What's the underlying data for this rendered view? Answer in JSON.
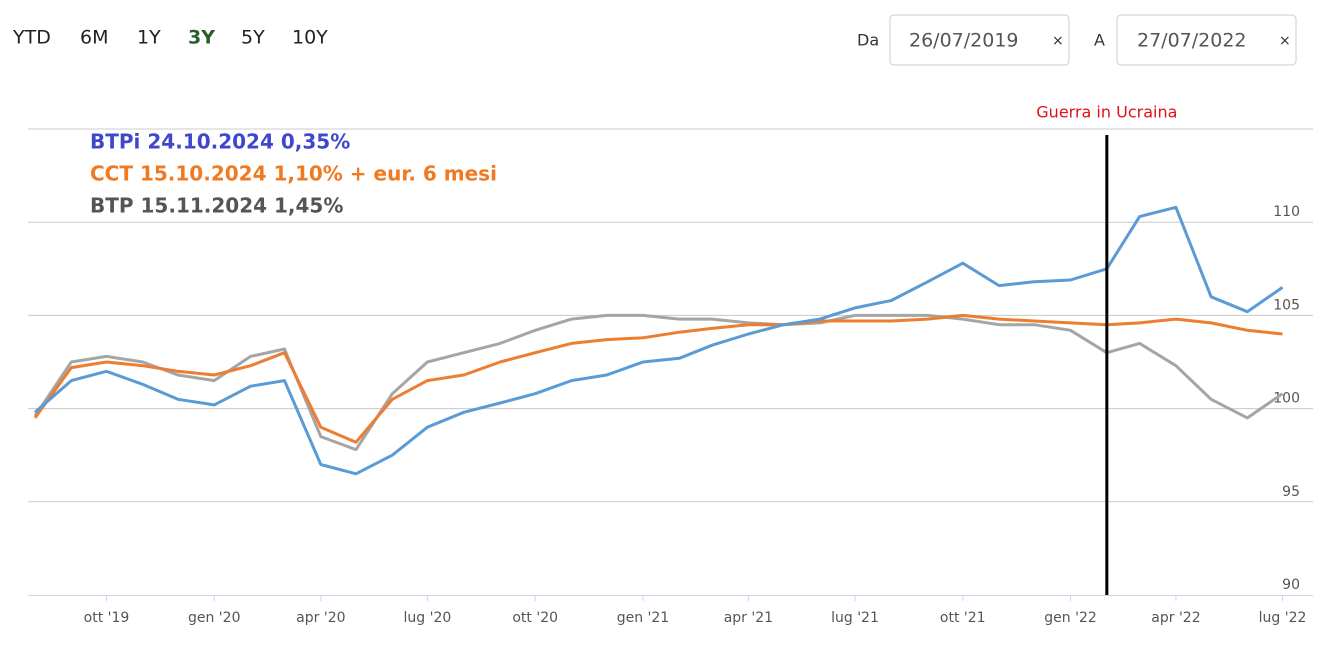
{
  "controls": {
    "ranges": [
      "YTD",
      "6M",
      "1Y",
      "3Y",
      "5Y",
      "10Y"
    ],
    "active": 3,
    "from_label": "Da",
    "to_label": "A",
    "clear": "×"
  },
  "chart_data": {
    "type": "line",
    "x": [
      "2019-08",
      "2019-09",
      "2019-10",
      "2019-11",
      "2019-12",
      "2020-01",
      "2020-02",
      "2020-03",
      "2020-04",
      "2020-05",
      "2020-06",
      "2020-07",
      "2020-08",
      "2020-09",
      "2020-10",
      "2020-11",
      "2020-12",
      "2021-01",
      "2021-02",
      "2021-03",
      "2021-04",
      "2021-05",
      "2021-06",
      "2021-07",
      "2021-08",
      "2021-09",
      "2021-10",
      "2021-11",
      "2021-12",
      "2022-01",
      "2022-02",
      "2022-03",
      "2022-04",
      "2022-05",
      "2022-06",
      "2022-07"
    ],
    "series": [
      {
        "name": "BTPi 24.10.2024 0,35%",
        "color": "#5b9bd5",
        "label_color": "#3f48cc",
        "values": [
          99.8,
          101.5,
          102.0,
          101.3,
          100.5,
          100.2,
          101.2,
          101.5,
          97.0,
          96.5,
          97.5,
          99.0,
          99.8,
          100.3,
          100.8,
          101.5,
          101.8,
          102.5,
          102.7,
          103.4,
          104.0,
          104.5,
          104.8,
          105.4,
          105.8,
          106.8,
          107.8,
          106.6,
          106.8,
          106.9,
          107.5,
          110.3,
          110.8,
          106.0,
          105.2,
          106.5
        ]
      },
      {
        "name": "CCT 15.10.2024 1,10% + eur. 6 mesi",
        "color": "#ed7d31",
        "label_color": "#f07a22",
        "values": [
          99.5,
          102.2,
          102.5,
          102.3,
          102.0,
          101.8,
          102.3,
          103.0,
          99.0,
          98.2,
          100.5,
          101.5,
          101.8,
          102.5,
          103.0,
          103.5,
          103.7,
          103.8,
          104.1,
          104.3,
          104.5,
          104.5,
          104.7,
          104.7,
          104.7,
          104.8,
          105.0,
          104.8,
          104.7,
          104.6,
          104.5,
          104.6,
          104.8,
          104.6,
          104.2,
          104.0
        ]
      },
      {
        "name": "BTP 15.11.2024 1,45%",
        "color": "#a5a5a5",
        "label_color": "#555555",
        "values": [
          99.6,
          102.5,
          102.8,
          102.5,
          101.8,
          101.5,
          102.8,
          103.2,
          98.5,
          97.8,
          100.8,
          102.5,
          103.0,
          103.5,
          104.2,
          104.8,
          105.0,
          105.0,
          104.8,
          104.8,
          104.6,
          104.5,
          104.6,
          105.0,
          105.0,
          105.0,
          104.8,
          104.5,
          104.5,
          104.2,
          103.0,
          103.5,
          102.3,
          100.5,
          99.5,
          100.8
        ]
      }
    ],
    "xlim": [
      "26/07/2019",
      "27/07/2022"
    ],
    "xticks": [
      {
        "value": "2019-10",
        "label": "ott '19"
      },
      {
        "value": "2020-01",
        "label": "gen '20"
      },
      {
        "value": "2020-04",
        "label": "apr '20"
      },
      {
        "value": "2020-07",
        "label": "lug '20"
      },
      {
        "value": "2020-10",
        "label": "ott '20"
      },
      {
        "value": "2021-01",
        "label": "gen '21"
      },
      {
        "value": "2021-04",
        "label": "apr '21"
      },
      {
        "value": "2021-07",
        "label": "lug '21"
      },
      {
        "value": "2021-10",
        "label": "ott '21"
      },
      {
        "value": "2022-01",
        "label": "gen '22"
      },
      {
        "value": "2022-04",
        "label": "apr '22"
      },
      {
        "value": "2022-07",
        "label": "lug '22"
      }
    ],
    "ylim": [
      90,
      115
    ],
    "yticks": [
      90,
      95,
      100,
      105,
      110
    ],
    "grid": true,
    "annotation": {
      "text": "Guerra in Ucraina",
      "x": "2022-02",
      "color": "#e0101a"
    }
  }
}
